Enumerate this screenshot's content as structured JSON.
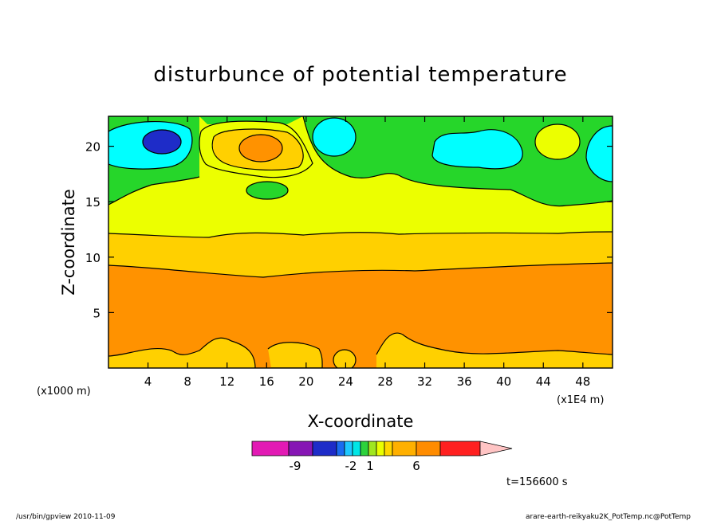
{
  "chart_data": {
    "type": "heatmap",
    "title": "disturbunce of potential temperature",
    "xlabel": "X-coordinate",
    "ylabel": "Z-coordinate",
    "x_unit_label": "(x1000 m)",
    "x_scale_label": "(x1E4 m)",
    "xlim": [
      0,
      51
    ],
    "ylim": [
      0,
      22.7
    ],
    "x_ticks": [
      "4",
      "8",
      "12",
      "16",
      "20",
      "24",
      "28",
      "32",
      "36",
      "40",
      "44",
      "48"
    ],
    "y_ticks": [
      "5",
      "10",
      "15",
      "20"
    ],
    "time_label": "t=156600 s",
    "colorbar": {
      "labels": [
        "-9",
        "-2",
        "1",
        "6"
      ],
      "levels": [
        -12,
        -9,
        -6,
        -3,
        -2,
        -1,
        0,
        1,
        2,
        3,
        4,
        6,
        8,
        12
      ],
      "colors": [
        "#e21ab4",
        "#8616b4",
        "#1e2cc8",
        "#1a6cf0",
        "#1ec8ff",
        "#00e6e6",
        "#2cd23c",
        "#a0e620",
        "#eaff00",
        "#ffd700",
        "#ffb000",
        "#ff8c00",
        "#ff2020",
        "#ff8080",
        "#ffc4c4"
      ]
    },
    "bands": [
      {
        "name": "level-4-6",
        "color": "#ff9200"
      },
      {
        "name": "level-3-4",
        "color": "#ffd000"
      },
      {
        "name": "level-2-3",
        "color": "#ecff00"
      },
      {
        "name": "level-1-2",
        "color": "#26d62a"
      },
      {
        "name": "level-0-1",
        "color": "#00ffff"
      },
      {
        "name": "level-neg",
        "color": "#1e2cc8"
      }
    ]
  },
  "footer": {
    "left": "/usr/bin/gpview   2010-11-09",
    "right": "arare-earth-reikyaku2K_PotTemp.nc@PotTemp"
  }
}
